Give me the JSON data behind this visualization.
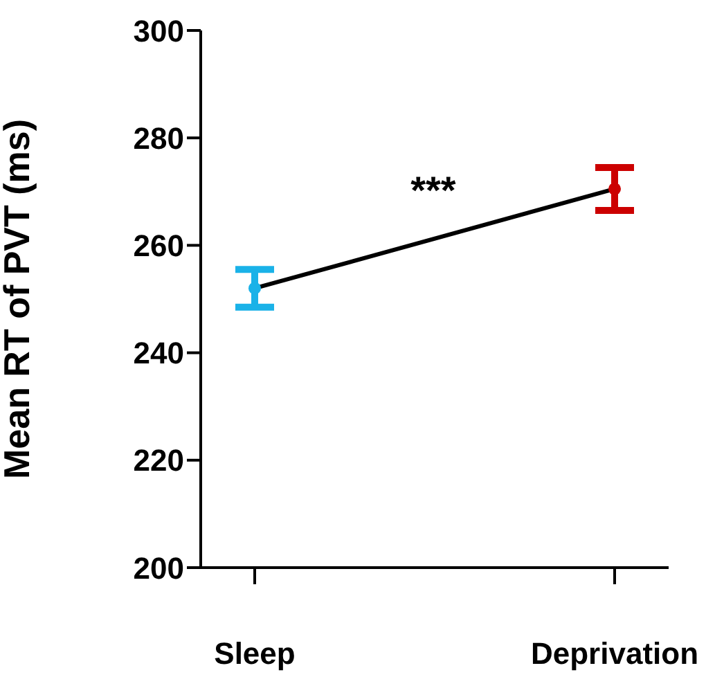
{
  "chart_data": {
    "type": "line",
    "ylabel": "Mean RT of PVT (ms)",
    "categories": [
      "Sleep",
      "Deprivation"
    ],
    "ylim": [
      200,
      300
    ],
    "yticks": [
      200,
      220,
      240,
      260,
      280,
      300
    ],
    "grid": false,
    "legend": false,
    "marker": "circle",
    "line_style": "solid",
    "annotations": [
      "***"
    ],
    "series": [
      {
        "color": "#000000",
        "colors": [
          "#1ab2e8",
          "#cc0000"
        ],
        "values": [
          252,
          270.5
        ],
        "errors": [
          3.5,
          4
        ]
      }
    ]
  }
}
